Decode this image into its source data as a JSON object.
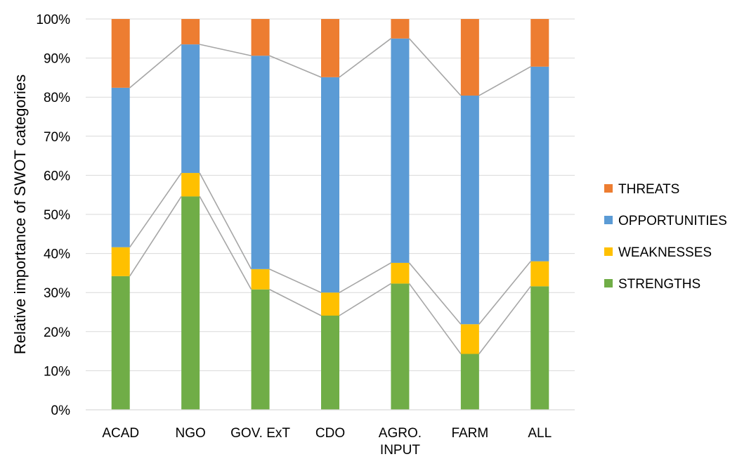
{
  "chart_data": {
    "type": "bar",
    "stacked": true,
    "normalized_percent": true,
    "categories": [
      [
        "ACAD"
      ],
      [
        "NGO"
      ],
      [
        "GOV. ExT"
      ],
      [
        "CDO"
      ],
      [
        "AGRO.",
        "INPUT"
      ],
      [
        "FARM"
      ],
      [
        "ALL"
      ]
    ],
    "series": [
      {
        "name": "STRENGTHS",
        "color": "#70AD47",
        "values": [
          34.2,
          54.6,
          30.8,
          24.1,
          32.3,
          14.3,
          31.6
        ]
      },
      {
        "name": "WEAKNESSES",
        "color": "#FFC000",
        "values": [
          7.4,
          6.0,
          5.2,
          5.9,
          5.3,
          7.6,
          6.4
        ]
      },
      {
        "name": "OPPORTUNITIES",
        "color": "#5B9BD5",
        "values": [
          40.8,
          32.9,
          54.6,
          55.1,
          57.4,
          58.5,
          49.8
        ]
      },
      {
        "name": "THREATS",
        "color": "#ED7D31",
        "values": [
          17.6,
          6.5,
          9.4,
          14.9,
          5.0,
          19.6,
          12.2
        ]
      }
    ],
    "ylabel": "Relative importance of SWOT categories",
    "xlabel": "",
    "ylim": [
      0,
      100
    ],
    "y_ticks": [
      "0%",
      "10%",
      "20%",
      "30%",
      "40%",
      "50%",
      "60%",
      "70%",
      "80%",
      "90%",
      "100%"
    ],
    "grid": true,
    "gridline_color": "#D9D9D9",
    "series_lines": true,
    "series_line_color": "#A6A6A6",
    "legend_position": "right",
    "legend_order": [
      "THREATS",
      "OPPORTUNITIES",
      "WEAKNESSES",
      "STRENGTHS"
    ]
  }
}
